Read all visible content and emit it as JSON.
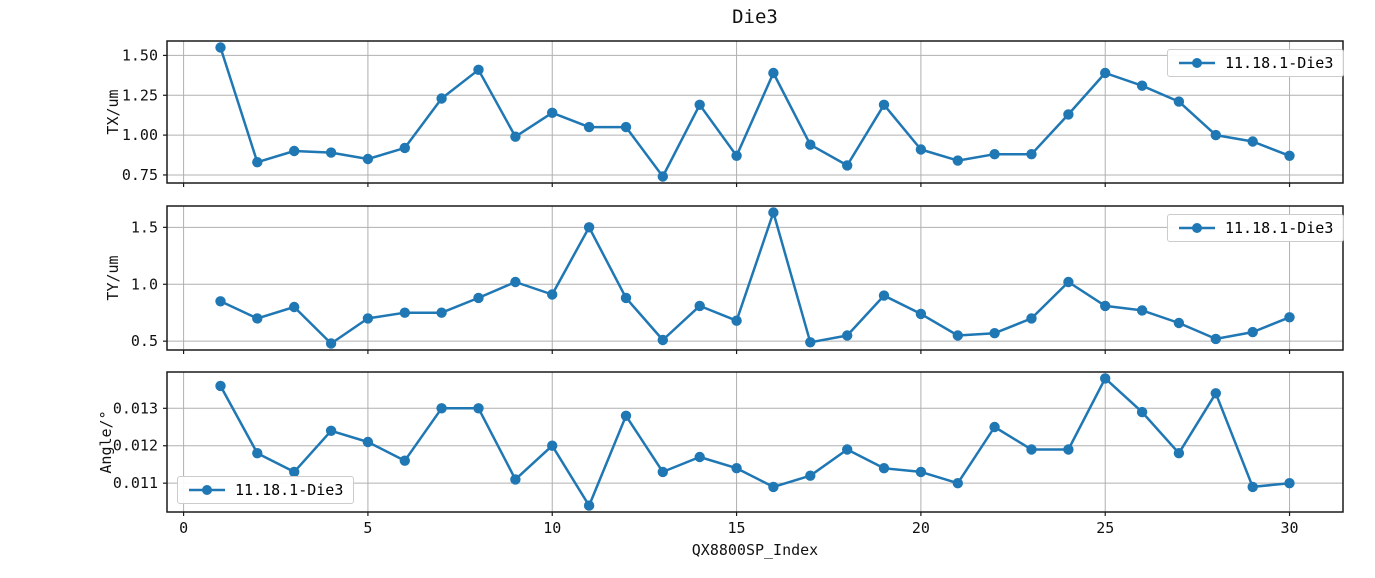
{
  "title": "Die3",
  "xlabel": "QX8800SP_Index",
  "series_label": "11.18.1-Die3",
  "colors": {
    "line": "#1f77b4",
    "grid": "#b0b0b0",
    "axis": "#1a1a1a",
    "legend_border": "#cccccc",
    "background": "#ffffff"
  },
  "chart_data": [
    {
      "type": "line",
      "name": "TX",
      "ylabel": "TX/um",
      "legend": "11.18.1-Die3",
      "legend_position": "upper right",
      "x": [
        1,
        2,
        3,
        4,
        5,
        6,
        7,
        8,
        9,
        10,
        11,
        12,
        13,
        14,
        15,
        16,
        17,
        18,
        19,
        20,
        21,
        22,
        23,
        24,
        25,
        26,
        27,
        28,
        29,
        30
      ],
      "y": [
        1.55,
        0.83,
        0.9,
        0.89,
        0.85,
        0.92,
        1.23,
        1.41,
        0.99,
        1.14,
        1.05,
        1.05,
        0.74,
        1.19,
        0.87,
        1.39,
        0.94,
        0.81,
        1.19,
        0.91,
        0.84,
        0.88,
        0.88,
        1.13,
        1.39,
        1.31,
        1.21,
        1.0,
        0.96,
        0.87
      ],
      "ylim": [
        0.6995,
        1.5905
      ],
      "yticks": [
        0.75,
        1.0,
        1.25,
        1.5
      ],
      "yticklabels": [
        "0.75",
        "1.00",
        "1.25",
        "1.50"
      ],
      "xlim": [
        -0.45,
        31.45
      ],
      "xticks": [
        0,
        5,
        10,
        15,
        20,
        25,
        30
      ],
      "xticklabels": [
        "0",
        "5",
        "10",
        "15",
        "20",
        "25",
        "30"
      ],
      "show_xticklabels": false,
      "grid": true,
      "marker": "circle"
    },
    {
      "type": "line",
      "name": "TY",
      "ylabel": "TY/um",
      "legend": "11.18.1-Die3",
      "legend_position": "upper right",
      "x": [
        1,
        2,
        3,
        4,
        5,
        6,
        7,
        8,
        9,
        10,
        11,
        12,
        13,
        14,
        15,
        16,
        17,
        18,
        19,
        20,
        21,
        22,
        23,
        24,
        25,
        26,
        27,
        28,
        29,
        30
      ],
      "y": [
        0.85,
        0.7,
        0.8,
        0.48,
        0.7,
        0.75,
        0.75,
        0.88,
        1.02,
        0.91,
        1.5,
        0.88,
        0.51,
        0.81,
        0.68,
        1.63,
        0.49,
        0.55,
        0.9,
        0.74,
        0.55,
        0.57,
        0.7,
        1.02,
        0.81,
        0.77,
        0.66,
        0.52,
        0.58,
        0.71
      ],
      "ylim": [
        0.4225,
        1.6875
      ],
      "yticks": [
        0.5,
        1.0,
        1.5
      ],
      "yticklabels": [
        "0.5",
        "1.0",
        "1.5"
      ],
      "xlim": [
        -0.45,
        31.45
      ],
      "xticks": [
        0,
        5,
        10,
        15,
        20,
        25,
        30
      ],
      "xticklabels": [
        "0",
        "5",
        "10",
        "15",
        "20",
        "25",
        "30"
      ],
      "show_xticklabels": false,
      "grid": true,
      "marker": "circle"
    },
    {
      "type": "line",
      "name": "Angle",
      "ylabel": "Angle/°",
      "legend": "11.18.1-Die3",
      "legend_position": "lower left",
      "x": [
        1,
        2,
        3,
        4,
        5,
        6,
        7,
        8,
        9,
        10,
        11,
        12,
        13,
        14,
        15,
        16,
        17,
        18,
        19,
        20,
        21,
        22,
        23,
        24,
        25,
        26,
        27,
        28,
        29,
        30
      ],
      "y": [
        0.0136,
        0.0118,
        0.0113,
        0.0124,
        0.0121,
        0.0116,
        0.013,
        0.013,
        0.0111,
        0.012,
        0.0104,
        0.0128,
        0.0113,
        0.0117,
        0.0114,
        0.0109,
        0.0112,
        0.0119,
        0.0114,
        0.0113,
        0.011,
        0.0125,
        0.0119,
        0.0119,
        0.0138,
        0.0129,
        0.0118,
        0.0134,
        0.0109,
        0.011
      ],
      "ylim": [
        0.01023,
        0.01397
      ],
      "yticks": [
        0.011,
        0.012,
        0.013
      ],
      "yticklabels": [
        "0.011",
        "0.012",
        "0.013"
      ],
      "xlim": [
        -0.45,
        31.45
      ],
      "xticks": [
        0,
        5,
        10,
        15,
        20,
        25,
        30
      ],
      "xticklabels": [
        "0",
        "5",
        "10",
        "15",
        "20",
        "25",
        "30"
      ],
      "show_xticklabels": true,
      "grid": true,
      "marker": "circle"
    }
  ]
}
